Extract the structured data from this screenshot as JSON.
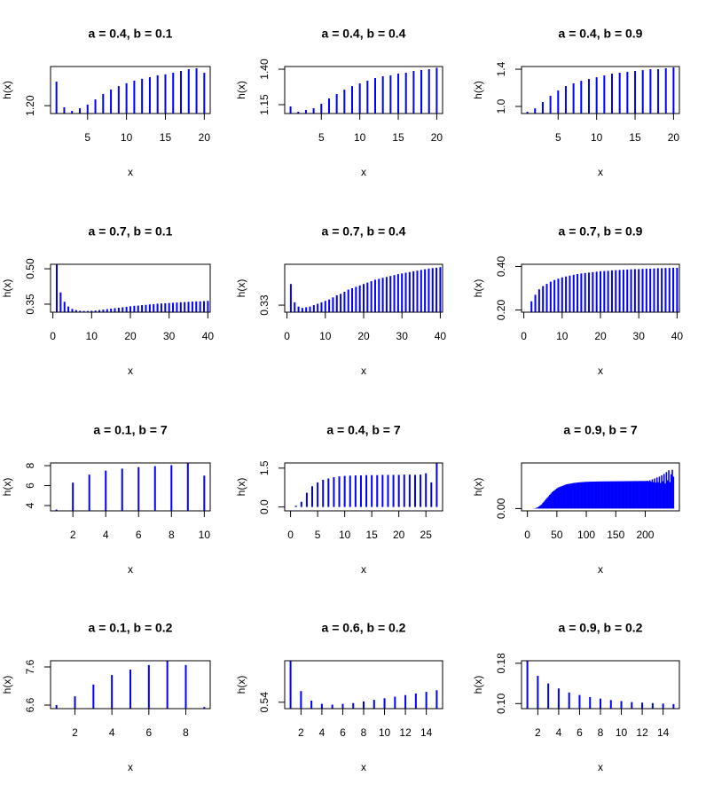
{
  "chart_data": [
    {
      "type": "bar",
      "title": "a = 0.4, b = 0.1",
      "xlabel": "x",
      "ylabel": "h(x)",
      "color": "#0000ff",
      "x": [
        1,
        2,
        3,
        4,
        5,
        6,
        7,
        8,
        9,
        10,
        11,
        12,
        13,
        14,
        15,
        16,
        17,
        18,
        19,
        20
      ],
      "values": [
        1.292,
        1.194,
        1.18,
        1.19,
        1.204,
        1.224,
        1.245,
        1.262,
        1.275,
        1.286,
        1.296,
        1.303,
        1.309,
        1.316,
        1.32,
        1.326,
        1.333,
        1.34,
        1.343,
        1.326
      ],
      "xlim": [
        0.24,
        20.76
      ],
      "ylim": [
        1.17,
        1.35
      ],
      "xticks": [
        5,
        10,
        15,
        20
      ],
      "yticks": [
        {
          "value": 1.2,
          "label": "1.20"
        }
      ]
    },
    {
      "type": "bar",
      "title": "a = 0.4, b = 0.4",
      "xlabel": "x",
      "ylabel": "h(x)",
      "color": "#0000ff",
      "x": [
        1,
        2,
        3,
        4,
        5,
        6,
        7,
        8,
        9,
        10,
        11,
        12,
        13,
        14,
        15,
        16,
        17,
        18,
        19,
        20
      ],
      "values": [
        1.1375,
        1.1,
        1.1125,
        1.125,
        1.156,
        1.194,
        1.225,
        1.256,
        1.281,
        1.3,
        1.319,
        1.3375,
        1.35,
        1.356,
        1.369,
        1.375,
        1.3875,
        1.394,
        1.4,
        1.41
      ],
      "xlim": [
        0.24,
        20.76
      ],
      "ylim": [
        1.0875,
        1.419
      ],
      "xticks": [
        5,
        10,
        15,
        20
      ],
      "yticks": [
        1.15,
        {
          "value": 1.4,
          "label": "1.40"
        }
      ]
    },
    {
      "type": "bar",
      "title": "a = 0.4, b = 0.9",
      "xlabel": "x",
      "ylabel": "h(x)",
      "color": "#0000ff",
      "x": [
        1,
        2,
        3,
        4,
        5,
        6,
        7,
        8,
        9,
        10,
        11,
        12,
        13,
        14,
        15,
        16,
        17,
        18,
        19,
        20
      ],
      "values": [
        0.943,
        0.98,
        1.048,
        1.114,
        1.171,
        1.219,
        1.248,
        1.276,
        1.295,
        1.314,
        1.333,
        1.352,
        1.362,
        1.371,
        1.381,
        1.39,
        1.4,
        1.4,
        1.41,
        1.419
      ],
      "xlim": [
        0.24,
        20.76
      ],
      "ylim": [
        0.924,
        1.429
      ],
      "xticks": [
        5,
        10,
        15,
        20
      ],
      "yticks": [
        {
          "value": 1,
          "label": "1.0"
        },
        1.4
      ]
    },
    {
      "type": "bar",
      "title": "a = 0.7, b = 0.1",
      "xlabel": "x",
      "ylabel": "h(x)",
      "color": "#0000ff",
      "x": [
        1,
        2,
        3,
        4,
        5,
        6,
        7,
        8,
        9,
        10,
        11,
        12,
        13,
        14,
        15,
        16,
        17,
        18,
        19,
        20,
        21,
        22,
        23,
        24,
        25,
        26,
        27,
        28,
        29,
        30,
        31,
        32,
        33,
        34,
        35,
        36,
        37,
        38,
        39,
        40
      ],
      "values": [
        0.519,
        0.4,
        0.36,
        0.34,
        0.33,
        0.325,
        0.322,
        0.321,
        0.321,
        0.322,
        0.323,
        0.325,
        0.327,
        0.329,
        0.331,
        0.333,
        0.335,
        0.337,
        0.339,
        0.341,
        0.343,
        0.344,
        0.346,
        0.347,
        0.349,
        0.35,
        0.352,
        0.353,
        0.354,
        0.355,
        0.356,
        0.357,
        0.358,
        0.359,
        0.36,
        0.361,
        0.362,
        0.362,
        0.363,
        0.364
      ],
      "xlim": [
        -0.6,
        40.6
      ],
      "ylim": [
        0.316,
        0.519
      ],
      "xticks": [
        0,
        10,
        20,
        30,
        40
      ],
      "yticks": [
        0.35,
        {
          "value": 0.5,
          "label": "0.50"
        }
      ]
    },
    {
      "type": "bar",
      "title": "a = 0.7, b = 0.4",
      "xlabel": "x",
      "ylabel": "h(x)",
      "color": "#0000ff",
      "x": [
        1,
        2,
        3,
        4,
        5,
        6,
        7,
        8,
        9,
        10,
        11,
        12,
        13,
        14,
        15,
        16,
        17,
        18,
        19,
        20,
        21,
        22,
        23,
        24,
        25,
        26,
        27,
        28,
        29,
        30,
        31,
        32,
        33,
        34,
        35,
        36,
        37,
        38,
        39,
        40
      ],
      "values": [
        0.345,
        0.332,
        0.329,
        0.328,
        0.3285,
        0.329,
        0.33,
        0.331,
        0.332,
        0.333,
        0.334,
        0.3355,
        0.337,
        0.338,
        0.3395,
        0.341,
        0.342,
        0.343,
        0.344,
        0.345,
        0.346,
        0.347,
        0.348,
        0.3487,
        0.3494,
        0.35,
        0.3507,
        0.3513,
        0.352,
        0.3525,
        0.353,
        0.3535,
        0.354,
        0.3545,
        0.355,
        0.3555,
        0.356,
        0.3563,
        0.3566,
        0.357
      ],
      "xlim": [
        -0.6,
        40.6
      ],
      "ylim": [
        0.325,
        0.359
      ],
      "xticks": [
        0,
        10,
        20,
        30,
        40
      ],
      "yticks": [
        0.33
      ]
    },
    {
      "type": "bar",
      "title": "a = 0.7, b = 0.9",
      "xlabel": "x",
      "ylabel": "h(x)",
      "color": "#0000ff",
      "x": [
        1,
        2,
        3,
        4,
        5,
        6,
        7,
        8,
        9,
        10,
        11,
        12,
        13,
        14,
        15,
        16,
        17,
        18,
        19,
        20,
        21,
        22,
        23,
        24,
        25,
        26,
        27,
        28,
        29,
        30,
        31,
        32,
        33,
        34,
        35,
        36,
        37,
        38,
        39,
        40
      ],
      "values": [
        0.19,
        0.24,
        0.27,
        0.295,
        0.31,
        0.32,
        0.33,
        0.338,
        0.344,
        0.35,
        0.354,
        0.358,
        0.362,
        0.365,
        0.368,
        0.37,
        0.372,
        0.374,
        0.376,
        0.378,
        0.379,
        0.38,
        0.382,
        0.383,
        0.384,
        0.385,
        0.386,
        0.387,
        0.388,
        0.388,
        0.389,
        0.39,
        0.39,
        0.391,
        0.392,
        0.392,
        0.393,
        0.393,
        0.394,
        0.394
      ],
      "xlim": [
        -0.6,
        40.6
      ],
      "ylim": [
        0.19,
        0.41
      ],
      "xticks": [
        0,
        10,
        20,
        30,
        40
      ],
      "yticks": [
        {
          "value": 0.2,
          "label": "0.20"
        },
        {
          "value": 0.4,
          "label": "0.40"
        }
      ]
    },
    {
      "type": "bar",
      "title": "a = 0.1, b = 7",
      "xlabel": "x",
      "ylabel": "h(x)",
      "color": "#0000ff",
      "x": [
        1,
        2,
        3,
        4,
        5,
        6,
        7,
        8,
        9,
        10
      ],
      "values": [
        3.6,
        6.3,
        7.1,
        7.5,
        7.7,
        7.85,
        7.95,
        8.05,
        8.25,
        7.0
      ],
      "xlim": [
        0.64,
        10.36
      ],
      "ylim": [
        3.47,
        8.27
      ],
      "xticks": [
        2,
        4,
        6,
        8,
        10
      ],
      "yticks": [
        4,
        6,
        8
      ]
    },
    {
      "type": "bar",
      "title": "a = 0.4, b = 7",
      "xlabel": "x",
      "ylabel": "h(x)",
      "color": "#0000ff",
      "x": [
        1,
        2,
        3,
        4,
        5,
        6,
        7,
        8,
        9,
        10,
        11,
        12,
        13,
        14,
        15,
        16,
        17,
        18,
        19,
        20,
        21,
        22,
        23,
        24,
        25,
        26,
        27
      ],
      "values": [
        0.05,
        0.2,
        0.55,
        0.8,
        0.95,
        1.05,
        1.1,
        1.15,
        1.18,
        1.2,
        1.21,
        1.22,
        1.22,
        1.23,
        1.23,
        1.23,
        1.24,
        1.24,
        1.24,
        1.24,
        1.25,
        1.25,
        1.24,
        1.25,
        1.3,
        0.95,
        1.7
      ],
      "xlim": [
        -1.08,
        28.08
      ],
      "ylim": [
        -0.15,
        1.7
      ],
      "xticks": [
        0,
        5,
        10,
        15,
        20,
        25
      ],
      "yticks": [
        {
          "value": 0,
          "label": "0.0"
        },
        1.5
      ]
    },
    {
      "type": "bar",
      "title": "a = 0.9, b = 7",
      "xlabel": "x",
      "ylabel": "h(x)",
      "color": "#0000ff",
      "x": [
        2,
        4,
        6,
        8,
        10,
        12,
        14,
        16,
        18,
        20,
        22,
        24,
        26,
        28,
        30,
        32,
        34,
        36,
        38,
        40,
        42,
        44,
        46,
        48,
        50,
        52,
        54,
        56,
        58,
        60,
        62,
        64,
        66,
        68,
        70,
        72,
        74,
        76,
        78,
        80,
        82,
        84,
        86,
        88,
        90,
        92,
        94,
        96,
        98,
        100,
        102,
        104,
        106,
        108,
        110,
        112,
        114,
        116,
        118,
        120,
        122,
        124,
        126,
        128,
        130,
        132,
        134,
        136,
        138,
        140,
        142,
        144,
        146,
        148,
        150,
        152,
        154,
        156,
        158,
        160,
        162,
        164,
        166,
        168,
        170,
        172,
        174,
        176,
        178,
        180,
        182,
        184,
        186,
        188,
        190,
        192,
        194,
        196,
        198,
        200,
        202,
        204,
        206,
        208,
        210,
        212,
        214,
        216,
        218,
        220,
        222,
        224,
        226,
        228,
        230,
        232,
        234,
        236,
        238,
        240,
        242,
        244,
        246,
        248
      ],
      "values": [
        0,
        0,
        0,
        0,
        0,
        0.0005,
        0.001,
        0.002,
        0.003,
        0.005,
        0.007,
        0.009,
        0.012,
        0.015,
        0.018,
        0.021,
        0.024,
        0.027,
        0.03,
        0.033,
        0.036,
        0.038,
        0.04,
        0.042,
        0.044,
        0.046,
        0.047,
        0.048,
        0.049,
        0.05,
        0.051,
        0.052,
        0.053,
        0.0535,
        0.054,
        0.0545,
        0.055,
        0.0555,
        0.056,
        0.0563,
        0.0566,
        0.0569,
        0.0572,
        0.0575,
        0.0577,
        0.0579,
        0.0581,
        0.0583,
        0.0585,
        0.0586,
        0.0587,
        0.0588,
        0.0589,
        0.059,
        0.059,
        0.0591,
        0.0592,
        0.0592,
        0.0593,
        0.0593,
        0.0594,
        0.0594,
        0.0595,
        0.0595,
        0.0596,
        0.0596,
        0.0596,
        0.0597,
        0.0597,
        0.0597,
        0.0598,
        0.0598,
        0.0598,
        0.0599,
        0.0599,
        0.0599,
        0.06,
        0.06,
        0.06,
        0.06,
        0.0601,
        0.0601,
        0.0601,
        0.0601,
        0.0602,
        0.0602,
        0.0602,
        0.0602,
        0.0602,
        0.0603,
        0.0603,
        0.0603,
        0.0603,
        0.0603,
        0.0604,
        0.0604,
        0.0604,
        0.0604,
        0.0604,
        0.0605,
        0.0605,
        0.061,
        0.06,
        0.062,
        0.059,
        0.064,
        0.058,
        0.066,
        0.057,
        0.068,
        0.058,
        0.07,
        0.056,
        0.073,
        0.06,
        0.076,
        0.055,
        0.08,
        0.062,
        0.084,
        0.058,
        0.075,
        0.085,
        0.07
      ],
      "xlim": [
        -10,
        258
      ],
      "ylim": [
        -0.005,
        0.1
      ],
      "xticks": [
        0,
        50,
        100,
        150,
        200
      ],
      "yticks": [
        {
          "value": 0,
          "label": "0.00"
        }
      ]
    },
    {
      "type": "bar",
      "title": "a = 0.1, b = 0.2",
      "xlabel": "x",
      "ylabel": "h(x)",
      "color": "#0000ff",
      "x": [
        1,
        2,
        3,
        4,
        5,
        6,
        7,
        8,
        9
      ],
      "values": [
        6.6,
        6.83,
        7.14,
        7.39,
        7.53,
        7.65,
        7.76,
        7.65,
        6.55
      ],
      "xlim": [
        0.68,
        9.32
      ],
      "ylim": [
        6.507,
        7.763
      ],
      "xticks": [
        2,
        4,
        6,
        8
      ],
      "yticks": [
        6.6,
        7.6
      ]
    },
    {
      "type": "bar",
      "title": "a = 0.6, b = 0.2",
      "xlabel": "x",
      "ylabel": "h(x)",
      "color": "#0000ff",
      "x": [
        1,
        2,
        3,
        4,
        5,
        6,
        7,
        8,
        9,
        10,
        11,
        12,
        13,
        14,
        15
      ],
      "values": [
        0.566,
        0.547,
        0.541,
        0.539,
        0.5385,
        0.539,
        0.5395,
        0.5405,
        0.5415,
        0.5425,
        0.5435,
        0.5445,
        0.5455,
        0.5465,
        0.5475
      ],
      "xlim": [
        0.44,
        15.56
      ],
      "ylim": [
        0.536,
        0.566
      ],
      "xticks": [
        2,
        4,
        6,
        8,
        10,
        12,
        14
      ],
      "yticks": [
        0.54
      ]
    },
    {
      "type": "bar",
      "title": "a = 0.9, b = 0.2",
      "xlabel": "x",
      "ylabel": "h(x)",
      "color": "#0000ff",
      "x": [
        1,
        2,
        3,
        4,
        5,
        6,
        7,
        8,
        9,
        10,
        11,
        12,
        13,
        14,
        15
      ],
      "values": [
        0.185,
        0.155,
        0.14,
        0.13,
        0.122,
        0.117,
        0.113,
        0.11,
        0.107,
        0.105,
        0.103,
        0.102,
        0.101,
        0.1,
        0.099
      ],
      "xlim": [
        0.44,
        15.56
      ],
      "ylim": [
        0.09,
        0.185
      ],
      "xticks": [
        2,
        4,
        6,
        8,
        10,
        12,
        14
      ],
      "yticks": [
        {
          "value": 0.1,
          "label": "0.10"
        },
        {
          "value": 0.18,
          "label": "0.18"
        }
      ]
    }
  ]
}
